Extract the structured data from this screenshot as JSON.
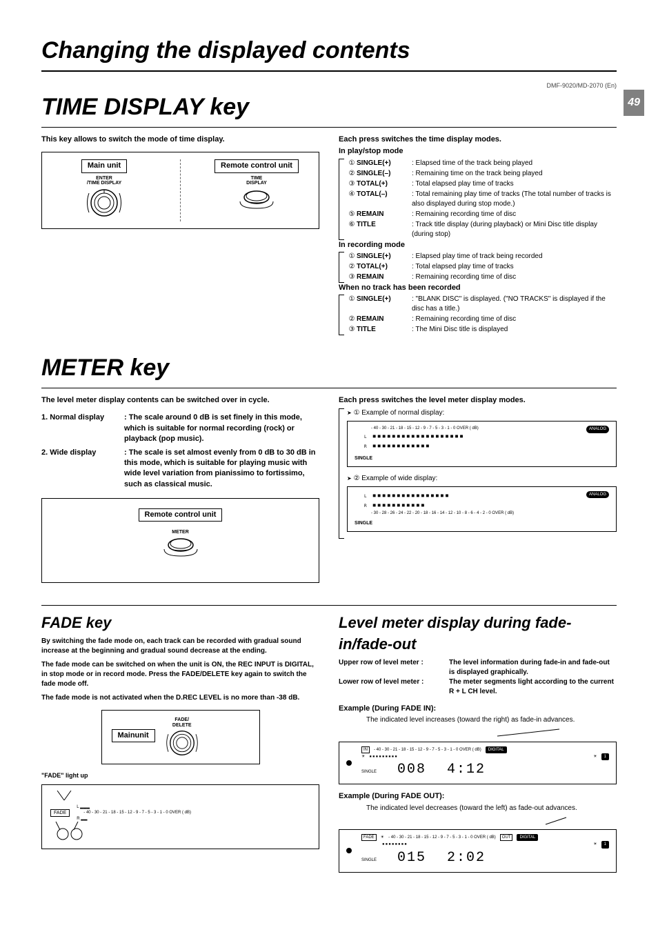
{
  "header": {
    "model": "DMF-9020/MD-2070 (En)",
    "page_number": "49",
    "title_changing": "Changing the displayed contents",
    "title_time": "TIME DISPLAY key",
    "title_meter": "METER key"
  },
  "time_display": {
    "intro": "This key allows to switch the mode of time display.",
    "main_unit_label": "Main unit",
    "remote_label": "Remote control unit",
    "main_caption": "ENTER\n/TIME DISPLAY",
    "remote_caption": "TIME\nDISPLAY",
    "switch_header": "Each press switches the time display modes.",
    "play_stop_header": "In play/stop mode",
    "play_stop": [
      {
        "n": "①",
        "label": "SINGLE(+)",
        "desc": ": Elapsed time of the track being played"
      },
      {
        "n": "②",
        "label": "SINGLE(–)",
        "desc": ": Remaining time on the track being played"
      },
      {
        "n": "③",
        "label": "TOTAL(+)",
        "desc": ": Total elapsed play time of tracks"
      },
      {
        "n": "④",
        "label": "TOTAL(–)",
        "desc": ": Total remaining play time of tracks (The total number of tracks is also displayed during stop mode.)"
      },
      {
        "n": "⑤",
        "label": "REMAIN",
        "desc": ": Remaining recording time of disc"
      },
      {
        "n": "⑥",
        "label": "TITLE",
        "desc": ": Track title display (during playback) or Mini Disc title display (during stop)"
      }
    ],
    "recording_header": "In recording mode",
    "recording": [
      {
        "n": "①",
        "label": "SINGLE(+)",
        "desc": ": Elapsed play time of track being recorded"
      },
      {
        "n": "②",
        "label": "TOTAL(+)",
        "desc": ": Total elapsed play time of tracks"
      },
      {
        "n": "③",
        "label": "REMAIN",
        "desc": ": Remaining recording time of disc"
      }
    ],
    "notrack_header": "When no track has been recorded",
    "notrack": [
      {
        "n": "①",
        "label": "SINGLE(+)",
        "desc": ": \"BLANK DISC\" is displayed. (\"NO TRACKS\" is displayed if the disc has a title.)"
      },
      {
        "n": "②",
        "label": "REMAIN",
        "desc": ": Remaining recording time of disc"
      },
      {
        "n": "③",
        "label": "TITLE",
        "desc": ": The Mini Disc title is displayed"
      }
    ]
  },
  "meter": {
    "intro": "The level meter display contents can be switched over in cycle.",
    "defs": [
      {
        "label": "1. Normal display",
        "text": ": The scale around 0 dB is set finely in this mode, which is suitable for normal recording (rock) or playback (pop music)."
      },
      {
        "label": "2. Wide display",
        "text": ": The scale is set almost evenly from 0 dB to 30 dB in this mode, which is suitable for playing music with wide level variation from pianissimo to fortissimo, such as classical music."
      }
    ],
    "remote_label": "Remote control unit",
    "remote_caption": "METER",
    "switch_header": "Each press switches the level meter display modes.",
    "example_normal": "Example of normal display:",
    "example_wide": "Example of wide display:",
    "normal_scale": "- 40 - 30 - 21 - 18 - 15 - 12 - 9 - 7 - 5 - 3 - 1 - 0  OVER ( dB)",
    "wide_scale": "- 30 - 28 - 26 - 24 - 22 - 20 - 18 - 16 - 14 - 12 - 10 - 8 - 6 - 4 - 2 - 0  OVER ( dB)",
    "analog": "ANALOG",
    "single": "SINGLE",
    "lr": "L\nR"
  },
  "fade": {
    "title": "FADE key",
    "p1": "By switching the fade mode on, each track can be recorded with gradual sound increase at the beginning and gradual sound decrease at the ending.",
    "p2": "The fade mode can be switched on when the unit is ON, the REC INPUT is DIGITAL, in stop mode or in record mode. Press the FADE/DELETE key again to switch the fade mode off.",
    "p3": "The fade mode is not activated when the D.REC LEVEL is no more than -38 dB.",
    "main_unit_label": "Mainunit",
    "btn_caption": "FADE/\nDELETE",
    "light_label": "\"FADE\" light up",
    "fade_indicator": "FADE",
    "scale": "- 40 - 30 - 21 - 18 - 15 - 12 - 9 - 7 - 5 - 3 - 1 - 0  OVER ( dB)"
  },
  "level": {
    "title": "Level meter display during fade-in/fade-out",
    "upper_k": "Upper row of level meter :",
    "upper_v": "The level information during fade-in and fade-out is displayed graphically.",
    "lower_k": "Lower row of level meter :",
    "lower_v": "The meter segments light according to the current R + L CH level.",
    "ex_in_label": "Example (During FADE IN):",
    "ex_in_hint": "The indicated level increases (toward the right) as fade-in advances.",
    "ex_out_label": "Example (During FADE OUT):",
    "ex_out_hint": "The indicated level decreases (toward the left) as fade-out advances.",
    "digital": "DIGITAL",
    "one": "1",
    "in_track": "008",
    "in_time": "4:12",
    "in_label": "IN",
    "single": "SINGLE",
    "out_track": "015",
    "out_time": "2:02",
    "out_label": "OUT",
    "fade_label": "FADE",
    "scale": "- 40 - 30 - 21 - 18 - 15 - 12 - 9 - 7 - 5 - 3 - 1 - 0  OVER ( dB)"
  }
}
